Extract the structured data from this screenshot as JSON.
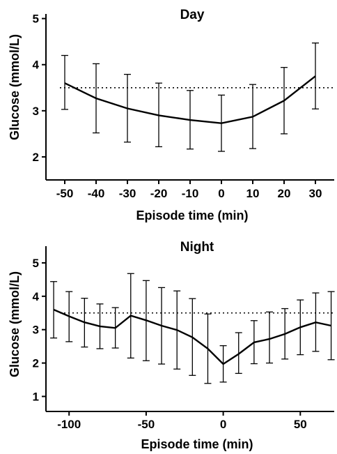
{
  "chart_data": [
    {
      "type": "line",
      "title": "Day",
      "xlabel": "Episode time (min)",
      "ylabel": "Glucose (mmol/L)",
      "xlim": [
        -56,
        36
      ],
      "ylim": [
        1.5,
        5.1
      ],
      "xticks": [
        -50,
        -40,
        -30,
        -20,
        -10,
        0,
        10,
        20,
        30
      ],
      "xtick_labels": [
        "-50",
        "-40",
        "-30",
        "-20",
        "-10",
        "0",
        "10",
        "20",
        "30"
      ],
      "yticks": [
        2,
        3,
        4,
        5
      ],
      "ytick_labels": [
        "2",
        "3",
        "4",
        "5"
      ],
      "reference_line": 3.5,
      "series": [
        {
          "x": [
            -50,
            -40,
            -30,
            -20,
            -10,
            0,
            10,
            20,
            30
          ],
          "y": [
            3.6,
            3.27,
            3.05,
            2.9,
            2.8,
            2.73,
            2.87,
            3.22,
            3.75
          ],
          "err_low": [
            3.03,
            2.52,
            2.32,
            2.22,
            2.17,
            2.12,
            2.18,
            2.5,
            3.04
          ],
          "err_high": [
            4.2,
            4.02,
            3.79,
            3.6,
            3.44,
            3.34,
            3.57,
            3.94,
            4.47
          ]
        }
      ]
    },
    {
      "type": "line",
      "title": "Night",
      "xlabel": "Episode time (min)",
      "ylabel": "Glucose (mmol/L)",
      "xlim": [
        -115,
        72
      ],
      "ylim": [
        0.55,
        5.5
      ],
      "xticks": [
        -100,
        -50,
        0,
        50
      ],
      "xtick_labels": [
        "-100",
        "-50",
        "0",
        "50"
      ],
      "yticks": [
        1,
        2,
        3,
        4,
        5
      ],
      "ytick_labels": [
        "1",
        "2",
        "3",
        "4",
        "5"
      ],
      "reference_line": 3.5,
      "series": [
        {
          "x": [
            -110,
            -100,
            -90,
            -80,
            -70,
            -60,
            -50,
            -40,
            -30,
            -20,
            -10,
            0,
            10,
            20,
            30,
            40,
            50,
            60,
            70
          ],
          "y": [
            3.6,
            3.4,
            3.22,
            3.1,
            3.05,
            3.42,
            3.28,
            3.12,
            2.99,
            2.77,
            2.43,
            1.97,
            2.27,
            2.62,
            2.72,
            2.87,
            3.07,
            3.22,
            3.12
          ],
          "err_low": [
            2.75,
            2.64,
            2.48,
            2.43,
            2.45,
            2.15,
            2.07,
            1.97,
            1.82,
            1.63,
            1.39,
            1.43,
            1.69,
            1.98,
            2.0,
            2.12,
            2.25,
            2.35,
            2.1
          ],
          "err_high": [
            4.44,
            4.14,
            3.94,
            3.77,
            3.66,
            4.68,
            4.47,
            4.26,
            4.16,
            3.93,
            3.47,
            2.52,
            2.91,
            3.27,
            3.53,
            3.63,
            3.89,
            4.1,
            4.14
          ]
        }
      ]
    }
  ]
}
